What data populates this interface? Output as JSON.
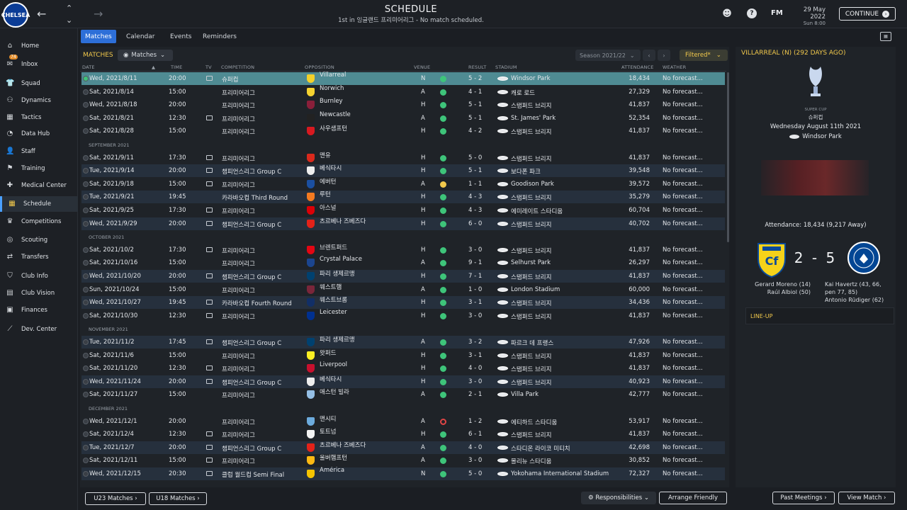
{
  "header": {
    "title": "SCHEDULE",
    "subtitle": "1st in 잉글랜드 프리미어리그 - No match scheduled.",
    "date": "29 May 2022",
    "day": "Sun 8:00",
    "fm": "FM",
    "continue_label": "CONTINUE",
    "club_crest": "CHELSEA"
  },
  "sidebar": {
    "inbox_count": "74",
    "items": [
      {
        "label": "Home",
        "icon": "home-icon",
        "glyph": "⌂"
      },
      {
        "label": "Inbox",
        "icon": "inbox-icon",
        "glyph": "✉"
      },
      {
        "label": "Squad",
        "icon": "squad-icon",
        "glyph": "👕"
      },
      {
        "label": "Dynamics",
        "icon": "dynamics-icon",
        "glyph": "⚇"
      },
      {
        "label": "Tactics",
        "icon": "tactics-icon",
        "glyph": "▦"
      },
      {
        "label": "Data Hub",
        "icon": "data-hub-icon",
        "glyph": "◔"
      },
      {
        "label": "Staff",
        "icon": "staff-icon",
        "glyph": "👤"
      },
      {
        "label": "Training",
        "icon": "training-icon",
        "glyph": "⚑"
      },
      {
        "label": "Medical Center",
        "icon": "medical-icon",
        "glyph": "✚"
      },
      {
        "label": "Schedule",
        "icon": "calendar-icon",
        "glyph": "▦"
      },
      {
        "label": "Competitions",
        "icon": "trophy-icon",
        "glyph": "♛"
      },
      {
        "label": "Scouting",
        "icon": "scouting-icon",
        "glyph": "◎"
      },
      {
        "label": "Transfers",
        "icon": "transfers-icon",
        "glyph": "⇄"
      },
      {
        "label": "Club Info",
        "icon": "shield-icon",
        "glyph": "⛉"
      },
      {
        "label": "Club Vision",
        "icon": "vision-icon",
        "glyph": "▤"
      },
      {
        "label": "Finances",
        "icon": "finances-icon",
        "glyph": "▣"
      },
      {
        "label": "Dev. Center",
        "icon": "dev-center-icon",
        "glyph": "⟋"
      }
    ]
  },
  "tabs": [
    "Matches",
    "Calendar",
    "Events",
    "Reminders"
  ],
  "panel": {
    "matches_label": "MATCHES",
    "matches_dd": "Matches",
    "season": "Season 2021/22",
    "filtered": "Filtered*"
  },
  "columns": {
    "date": "DATE",
    "time": "TIME",
    "tv": "TV",
    "competition": "COMPETITION",
    "opposition": "OPPOSITION",
    "venue": "VENUE",
    "result": "RESULT",
    "stadium": "STADIUM",
    "attendance": "ATTENDANCE",
    "weather": "WEATHER"
  },
  "rows": [
    {
      "date": "Wed, 2021/8/11",
      "time": "20:00",
      "tv": true,
      "comp": "슈퍼컵",
      "opp": "Villarreal",
      "venue": "N",
      "res": "w",
      "score": "5 - 2",
      "stadium": "Windsor Park",
      "att": "18,434",
      "weather": "No forecast...",
      "crest": "#f2d02a"
    },
    {
      "date": "Sat, 2021/8/14",
      "time": "15:00",
      "tv": false,
      "comp": "프리미어리그",
      "opp": "Norwich",
      "venue": "A",
      "res": "w",
      "score": "4 - 1",
      "stadium": "캐로 로드",
      "att": "27,329",
      "weather": "No forecast...",
      "crest": "#f5d230"
    },
    {
      "date": "Wed, 2021/8/18",
      "time": "20:00",
      "tv": false,
      "comp": "프리미어리그",
      "opp": "Burnley",
      "venue": "H",
      "res": "w",
      "score": "5 - 1",
      "stadium": "스탬퍼드 브리지",
      "att": "41,837",
      "weather": "No forecast...",
      "crest": "#8a1f3a"
    },
    {
      "date": "Sat, 2021/8/21",
      "time": "12:30",
      "tv": true,
      "comp": "프리미어리그",
      "opp": "Newcastle",
      "venue": "A",
      "res": "w",
      "score": "5 - 1",
      "stadium": "St. James' Park",
      "att": "52,354",
      "weather": "No forecast...",
      "crest": "#222222"
    },
    {
      "date": "Sat, 2021/8/28",
      "time": "15:00",
      "tv": false,
      "comp": "프리미어리그",
      "opp": "사우샘프턴",
      "venue": "H",
      "res": "w",
      "score": "4 - 2",
      "stadium": "스탬퍼드 브리지",
      "att": "41,837",
      "weather": "No forecast...",
      "crest": "#d71920"
    },
    {
      "month": "SEPTEMBER 2021"
    },
    {
      "date": "Sat, 2021/9/11",
      "time": "17:30",
      "tv": true,
      "comp": "프리미어리그",
      "opp": "맨유",
      "venue": "H",
      "res": "w",
      "score": "5 - 0",
      "stadium": "스탬퍼드 브리지",
      "att": "41,837",
      "weather": "No forecast...",
      "crest": "#da291c"
    },
    {
      "date": "Tue, 2021/9/14",
      "time": "20:00",
      "tv": true,
      "comp": "챔피언스리그 Group C",
      "opp": "베식타시",
      "venue": "H",
      "res": "w",
      "score": "5 - 1",
      "stadium": "보다폰 파크",
      "att": "39,548",
      "weather": "No forecast...",
      "crest": "#eeeeee"
    },
    {
      "date": "Sat, 2021/9/18",
      "time": "15:00",
      "tv": true,
      "comp": "프리미어리그",
      "opp": "에버턴",
      "venue": "A",
      "res": "d",
      "score": "1 - 1",
      "stadium": "Goodison Park",
      "att": "39,572",
      "weather": "No forecast...",
      "crest": "#1b4fa0"
    },
    {
      "date": "Tue, 2021/9/21",
      "time": "19:45",
      "tv": false,
      "comp": "카라바오컵 Third Round",
      "opp": "루턴",
      "venue": "H",
      "res": "w",
      "score": "4 - 3",
      "stadium": "스탬퍼드 브리지",
      "att": "35,279",
      "weather": "No forecast...",
      "crest": "#f47a20"
    },
    {
      "date": "Sat, 2021/9/25",
      "time": "17:30",
      "tv": true,
      "comp": "프리미어리그",
      "opp": "아스널",
      "venue": "H",
      "res": "w",
      "score": "4 - 3",
      "stadium": "에미레이트 스타디움",
      "att": "60,704",
      "weather": "No forecast...",
      "crest": "#db0007"
    },
    {
      "date": "Wed, 2021/9/29",
      "time": "20:00",
      "tv": true,
      "comp": "챔피언스리그 Group C",
      "opp": "츠르베나 즈베즈다",
      "venue": "H",
      "res": "w",
      "score": "6 - 0",
      "stadium": "스탬퍼드 브리지",
      "att": "40,702",
      "weather": "No forecast...",
      "crest": "#e32219"
    },
    {
      "month": "OCTOBER 2021"
    },
    {
      "date": "Sat, 2021/10/2",
      "time": "17:30",
      "tv": true,
      "comp": "프리미어리그",
      "opp": "브렌트퍼드",
      "venue": "H",
      "res": "w",
      "score": "3 - 0",
      "stadium": "스탬퍼드 브리지",
      "att": "41,837",
      "weather": "No forecast...",
      "crest": "#e30613"
    },
    {
      "date": "Sat, 2021/10/16",
      "time": "15:00",
      "tv": false,
      "comp": "프리미어리그",
      "opp": "Crystal Palace",
      "venue": "A",
      "res": "w",
      "score": "9 - 1",
      "stadium": "Selhurst Park",
      "att": "26,297",
      "weather": "No forecast...",
      "crest": "#1b458f"
    },
    {
      "date": "Wed, 2021/10/20",
      "time": "20:00",
      "tv": true,
      "comp": "챔피언스리그 Group C",
      "opp": "파리 생제르맹",
      "venue": "H",
      "res": "w",
      "score": "7 - 1",
      "stadium": "스탬퍼드 브리지",
      "att": "41,837",
      "weather": "No forecast...",
      "crest": "#004170"
    },
    {
      "date": "Sun, 2021/10/24",
      "time": "15:00",
      "tv": false,
      "comp": "프리미어리그",
      "opp": "웨스트햄",
      "venue": "A",
      "res": "w",
      "score": "1 - 0",
      "stadium": "London Stadium",
      "att": "60,000",
      "weather": "No forecast...",
      "crest": "#7a263a"
    },
    {
      "date": "Wed, 2021/10/27",
      "time": "19:45",
      "tv": true,
      "comp": "카라바오컵 Fourth Round",
      "opp": "웨스트브롬",
      "venue": "H",
      "res": "w",
      "score": "3 - 1",
      "stadium": "스탬퍼드 브리지",
      "att": "34,436",
      "weather": "No forecast...",
      "crest": "#122f67"
    },
    {
      "date": "Sat, 2021/10/30",
      "time": "12:30",
      "tv": true,
      "comp": "프리미어리그",
      "opp": "Leicester",
      "venue": "H",
      "res": "w",
      "score": "3 - 0",
      "stadium": "스탬퍼드 브리지",
      "att": "41,837",
      "weather": "No forecast...",
      "crest": "#003090"
    },
    {
      "month": "NOVEMBER 2021"
    },
    {
      "date": "Tue, 2021/11/2",
      "time": "17:45",
      "tv": true,
      "comp": "챔피언스리그 Group C",
      "opp": "파리 생제르맹",
      "venue": "A",
      "res": "w",
      "score": "3 - 2",
      "stadium": "파르크 데 프랭스",
      "att": "47,926",
      "weather": "No forecast...",
      "crest": "#004170"
    },
    {
      "date": "Sat, 2021/11/6",
      "time": "15:00",
      "tv": false,
      "comp": "프리미어리그",
      "opp": "왓퍼드",
      "venue": "H",
      "res": "w",
      "score": "3 - 1",
      "stadium": "스탬퍼드 브리지",
      "att": "41,837",
      "weather": "No forecast...",
      "crest": "#fbee23"
    },
    {
      "date": "Sat, 2021/11/20",
      "time": "12:30",
      "tv": true,
      "comp": "프리미어리그",
      "opp": "Liverpool",
      "venue": "H",
      "res": "w",
      "score": "4 - 0",
      "stadium": "스탬퍼드 브리지",
      "att": "41,837",
      "weather": "No forecast...",
      "crest": "#c8102e"
    },
    {
      "date": "Wed, 2021/11/24",
      "time": "20:00",
      "tv": true,
      "comp": "챔피언스리그 Group C",
      "opp": "베식타시",
      "venue": "H",
      "res": "w",
      "score": "3 - 0",
      "stadium": "스탬퍼드 브리지",
      "att": "40,923",
      "weather": "No forecast...",
      "crest": "#eeeeee"
    },
    {
      "date": "Sat, 2021/11/27",
      "time": "15:00",
      "tv": false,
      "comp": "프리미어리그",
      "opp": "애스턴 빌라",
      "venue": "A",
      "res": "w",
      "score": "2 - 1",
      "stadium": "Villa Park",
      "att": "42,777",
      "weather": "No forecast...",
      "crest": "#95bfe5"
    },
    {
      "month": "DECEMBER 2021"
    },
    {
      "date": "Wed, 2021/12/1",
      "time": "20:00",
      "tv": false,
      "comp": "프리미어리그",
      "opp": "맨시티",
      "venue": "A",
      "res": "l",
      "score": "1 - 2",
      "stadium": "에티하드 스타디움",
      "att": "53,917",
      "weather": "No forecast...",
      "crest": "#6cabdd"
    },
    {
      "date": "Sat, 2021/12/4",
      "time": "12:30",
      "tv": true,
      "comp": "프리미어리그",
      "opp": "토트넘",
      "venue": "H",
      "res": "w",
      "score": "6 - 1",
      "stadium": "스탬퍼드 브리지",
      "att": "41,837",
      "weather": "No forecast...",
      "crest": "#f3f3f3"
    },
    {
      "date": "Tue, 2021/12/7",
      "time": "20:00",
      "tv": true,
      "comp": "챔피언스리그 Group C",
      "opp": "츠르베나 즈베즈다",
      "venue": "A",
      "res": "w",
      "score": "4 - 0",
      "stadium": "스타디온 라이코 미티치",
      "att": "42,698",
      "weather": "No forecast...",
      "crest": "#e32219"
    },
    {
      "date": "Sat, 2021/12/11",
      "time": "15:00",
      "tv": true,
      "comp": "프리미어리그",
      "opp": "울버햄프턴",
      "venue": "A",
      "res": "w",
      "score": "3 - 0",
      "stadium": "몰리뉴 스타디움",
      "att": "30,852",
      "weather": "No forecast...",
      "crest": "#fdb913"
    },
    {
      "date": "Wed, 2021/12/15",
      "time": "20:30",
      "tv": true,
      "comp": "클럽 월드컵 Semi Final",
      "opp": "América",
      "venue": "N",
      "res": "w",
      "score": "5 - 0",
      "stadium": "Yokohama International Stadium",
      "att": "72,327",
      "weather": "No forecast...",
      "crest": "#f5c400"
    }
  ],
  "bottom": {
    "u23": "U23 Matches",
    "u18": "U18 Matches",
    "responsibilities": "Responsibilities",
    "arrange": "Arrange Friendly",
    "past": "Past Meetings",
    "view": "View Match"
  },
  "detail": {
    "title": "VILLARREAL (N) (292 DAYS AGO)",
    "comp_sub": "SUPER CUP",
    "comp": "슈퍼컵",
    "date": "Wednesday August 11th 2021",
    "venue": "Windsor Park",
    "attendance": "Attendance: 18,434 (9,217 Away)",
    "score": "2 - 5",
    "home_scorers": [
      "Gerard Moreno (14)",
      "Raúl Albiol (50)"
    ],
    "away_scorers": [
      "Kai Havertz (43, 66,",
      "pen 77, 85)",
      "Antonio Rüdiger (62)"
    ],
    "lineup": "LINE-UP"
  }
}
